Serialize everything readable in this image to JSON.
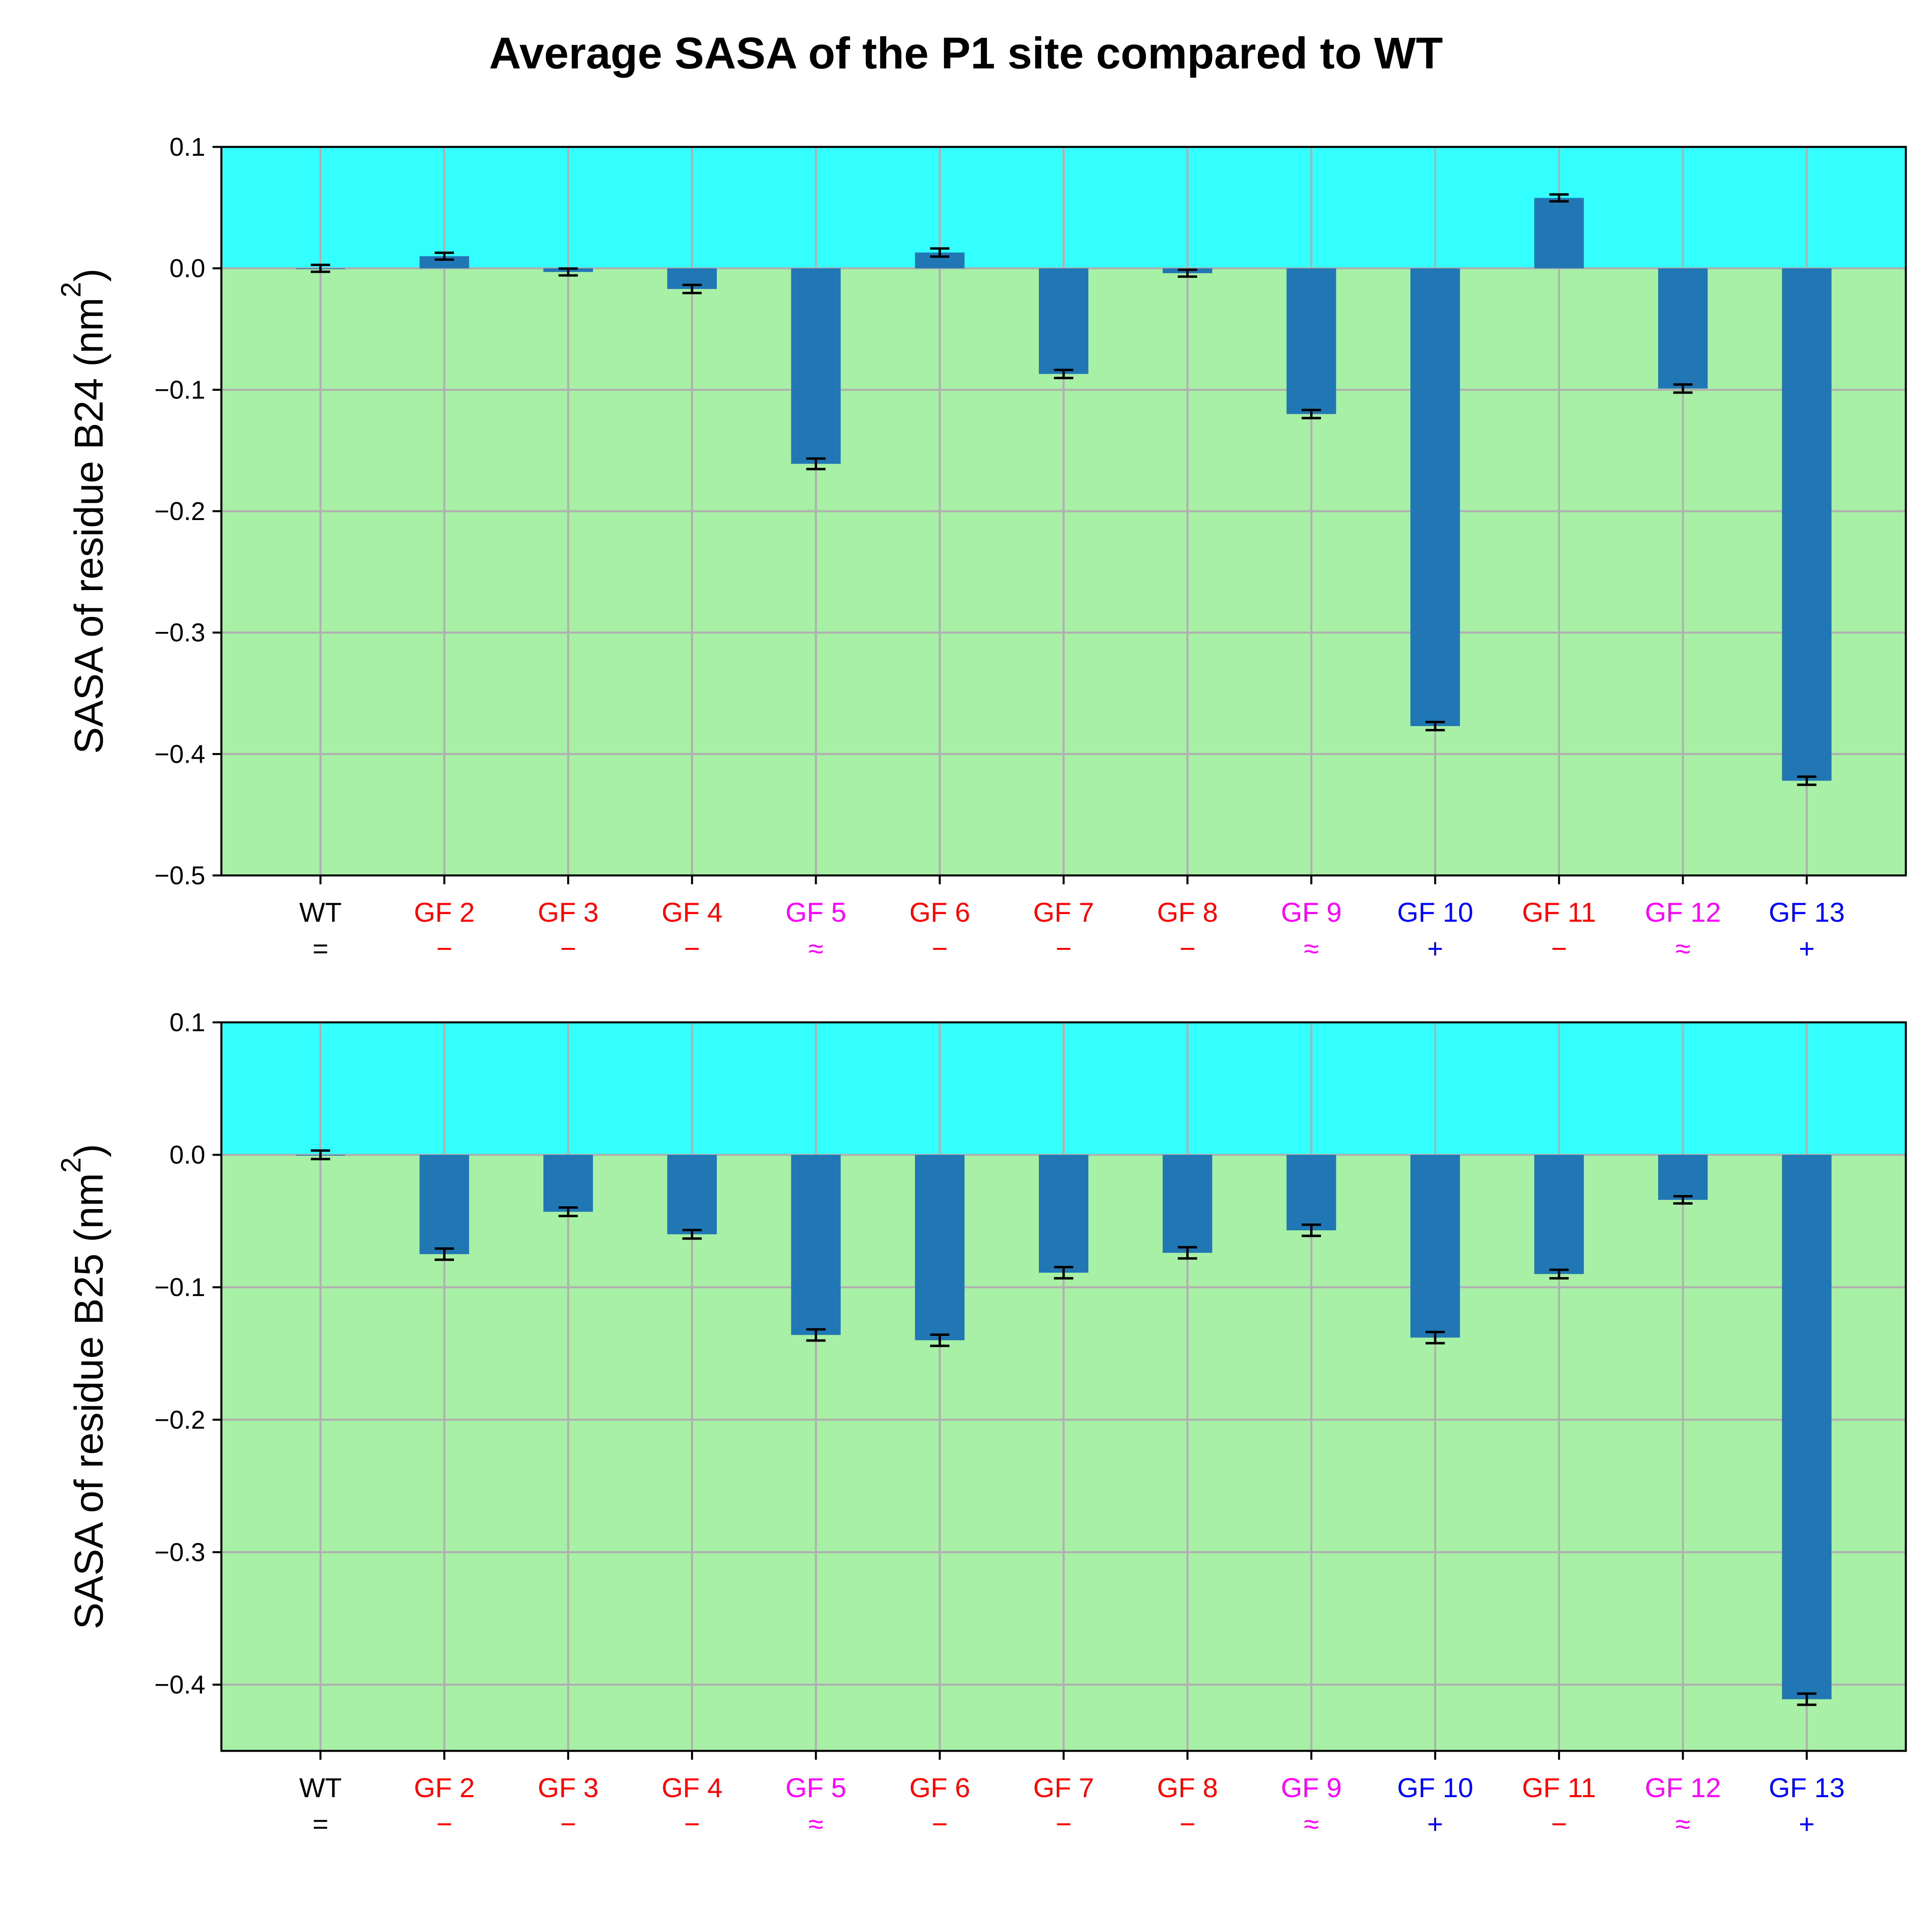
{
  "title": "Average SASA of the P1 site compared to WT",
  "colors": {
    "bar": "#2176b4",
    "above_zero_band": "#33ffff",
    "below_zero_band": "#a8f0a6",
    "grid": "#b0b0b0",
    "errorbar": "#000000",
    "label_neutral": "#000000",
    "label_decrease": "#ff0000",
    "label_similar": "#ff00ff",
    "label_increase": "#0000ff"
  },
  "chart_data": [
    {
      "type": "bar",
      "title": "",
      "xlabel": "",
      "ylabel": "SASA of residue B24 (nm²)",
      "ylabel_prefix": "SASA of residue B24 (nm",
      "ylabel_sup": "2",
      "ylabel_suffix": ")",
      "ylim": [
        -0.5,
        0.1
      ],
      "yticks": [
        0.1,
        0.0,
        -0.1,
        -0.2,
        -0.3,
        -0.4,
        -0.5
      ],
      "ytick_labels": [
        "0.1",
        "0.0",
        "−0.1",
        "−0.2",
        "−0.3",
        "−0.4",
        "−0.5"
      ],
      "grid": true,
      "categories": [
        "WT",
        "GF 2",
        "GF 3",
        "GF 4",
        "GF 5",
        "GF 6",
        "GF 7",
        "GF 8",
        "GF 9",
        "GF 10",
        "GF 11",
        "GF 12",
        "GF 13"
      ],
      "category_symbols": [
        "=",
        "−",
        "−",
        "−",
        "≈",
        "−",
        "−",
        "−",
        "≈",
        "+",
        "−",
        "≈",
        "+"
      ],
      "category_colors": [
        "#000000",
        "#ff0000",
        "#ff0000",
        "#ff0000",
        "#ff00ff",
        "#ff0000",
        "#ff0000",
        "#ff0000",
        "#ff00ff",
        "#0000ff",
        "#ff0000",
        "#ff00ff",
        "#0000ff"
      ],
      "values": [
        0.0,
        0.01,
        -0.003,
        -0.017,
        -0.161,
        0.013,
        -0.087,
        -0.004,
        -0.12,
        -0.377,
        0.058,
        -0.099,
        -0.422
      ],
      "errors": [
        0.0015,
        0.0015,
        0.0015,
        0.002,
        0.003,
        0.002,
        0.002,
        0.0015,
        0.002,
        0.002,
        0.0015,
        0.002,
        0.002
      ]
    },
    {
      "type": "bar",
      "title": "",
      "xlabel": "",
      "ylabel": "SASA of residue B25 (nm²)",
      "ylabel_prefix": "SASA of residue B25 (nm",
      "ylabel_sup": "2",
      "ylabel_suffix": ")",
      "ylim": [
        -0.45,
        0.1
      ],
      "yticks": [
        0.1,
        0.0,
        -0.1,
        -0.2,
        -0.3,
        -0.4
      ],
      "ytick_labels": [
        "0.1",
        "0.0",
        "−0.1",
        "−0.2",
        "−0.3",
        "−0.4"
      ],
      "grid": true,
      "categories": [
        "WT",
        "GF 2",
        "GF 3",
        "GF 4",
        "GF 5",
        "GF 6",
        "GF 7",
        "GF 8",
        "GF 9",
        "GF 10",
        "GF 11",
        "GF 12",
        "GF 13"
      ],
      "category_symbols": [
        "=",
        "−",
        "−",
        "−",
        "≈",
        "−",
        "−",
        "−",
        "≈",
        "+",
        "−",
        "≈",
        "+"
      ],
      "category_colors": [
        "#000000",
        "#ff0000",
        "#ff0000",
        "#ff0000",
        "#ff00ff",
        "#ff0000",
        "#ff0000",
        "#ff0000",
        "#ff00ff",
        "#0000ff",
        "#ff0000",
        "#ff00ff",
        "#0000ff"
      ],
      "values": [
        0.0,
        -0.075,
        -0.043,
        -0.06,
        -0.136,
        -0.14,
        -0.089,
        -0.074,
        -0.057,
        -0.138,
        -0.09,
        -0.034,
        -0.411
      ],
      "errors": [
        0.002,
        0.003,
        0.002,
        0.002,
        0.003,
        0.003,
        0.003,
        0.003,
        0.003,
        0.003,
        0.002,
        0.0015,
        0.003
      ]
    }
  ]
}
